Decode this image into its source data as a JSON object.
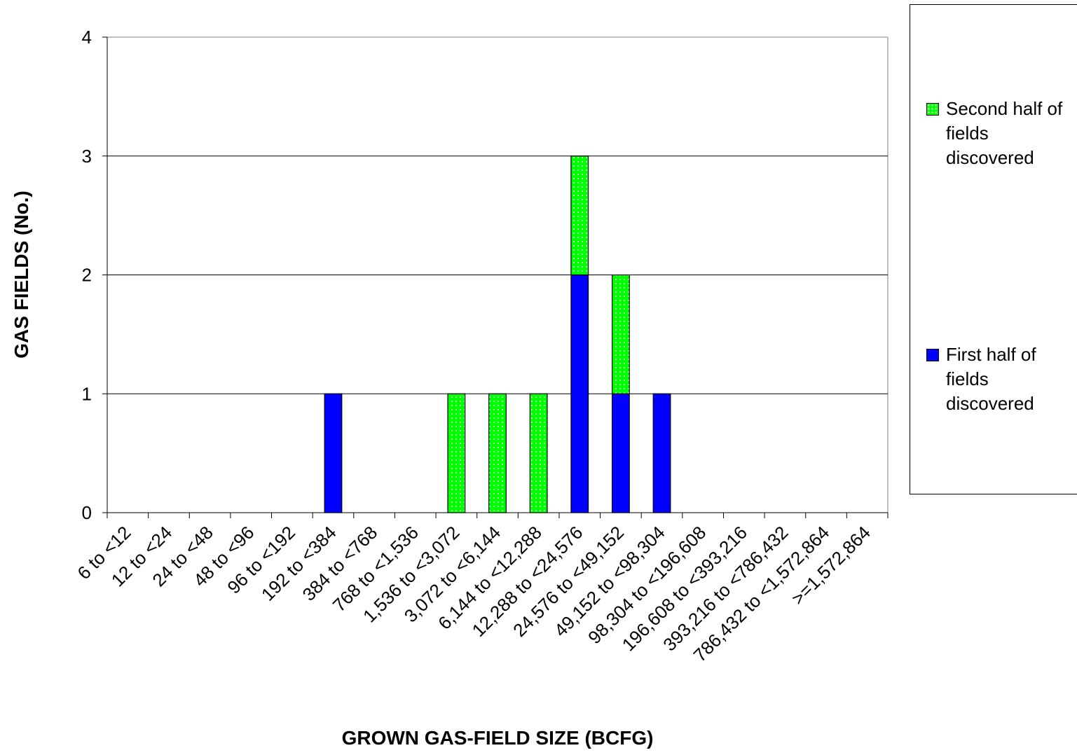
{
  "chart_data": {
    "type": "bar",
    "stacked": true,
    "categories": [
      "6 to <12",
      "12 to <24",
      "24 to <48",
      "48 to <96",
      "96 to <192",
      "192 to <384",
      "384 to <768",
      "768 to <1,536",
      "1,536 to <3,072",
      "3,072 to <6,144",
      "6,144 to <12,288",
      "12,288 to <24,576",
      "24,576 to <49,152",
      "49,152 to <98,304",
      "98,304 to <196,608",
      "196,608 to <393,216",
      "393,216 to <786,432",
      "786,432 to <1,572,864",
      ">=1,572,864"
    ],
    "series": [
      {
        "name": "First half of fields discovered",
        "color": "#0000ff",
        "values": [
          0,
          0,
          0,
          0,
          0,
          1,
          0,
          0,
          0,
          0,
          0,
          2,
          1,
          1,
          0,
          0,
          0,
          0,
          0
        ]
      },
      {
        "name": "Second half of fields discovered",
        "color": "#00ff00",
        "values": [
          0,
          0,
          0,
          0,
          0,
          0,
          0,
          0,
          1,
          1,
          1,
          1,
          1,
          0,
          0,
          0,
          0,
          0,
          0
        ]
      }
    ],
    "xlabel": "GROWN GAS-FIELD SIZE (BCFG)",
    "ylabel": "GAS FIELDS (No.)",
    "ylim": [
      0,
      4
    ],
    "yticks": [
      "0",
      "1",
      "2",
      "3",
      "4"
    ],
    "grid": true,
    "legend_position": "right"
  },
  "legend": {
    "second": "Second half of fields discovered",
    "first": "First half of fields discovered"
  }
}
